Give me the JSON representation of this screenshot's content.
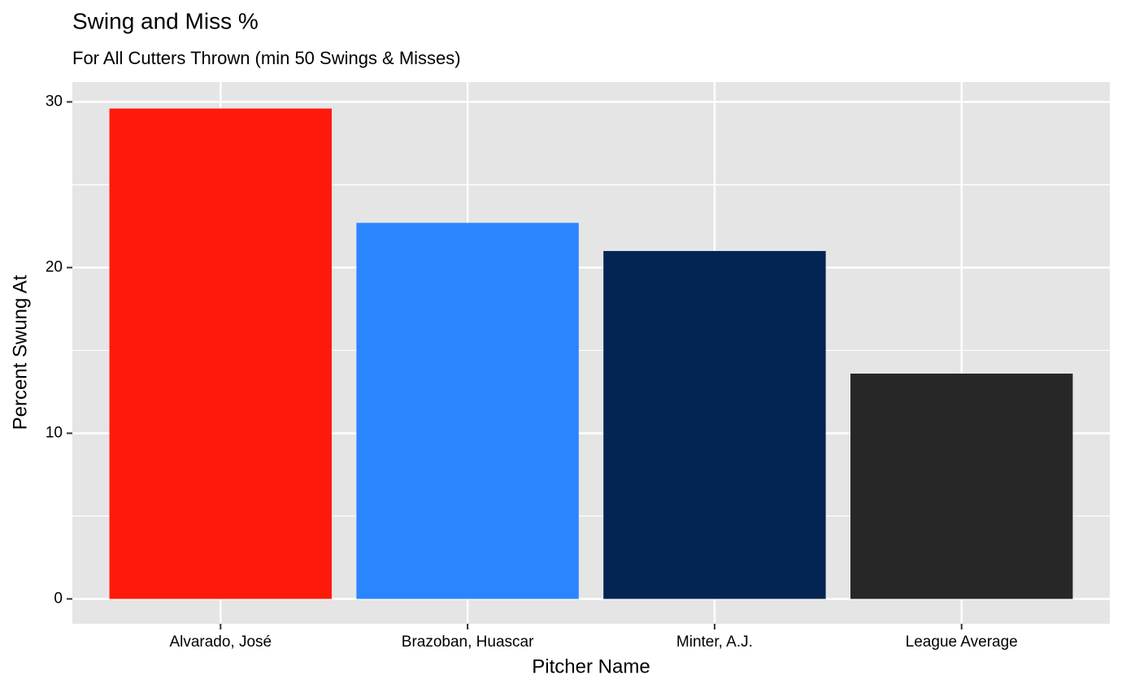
{
  "chart_data": {
    "type": "bar",
    "title": "Swing and Miss %",
    "subtitle": "For All Cutters Thrown (min 50 Swings & Misses)",
    "x_label": "Pitcher Name",
    "y_label": "Percent Swung At",
    "categories": [
      "Alvarado, José",
      "Brazoban, Huascar",
      "Minter, A.J.",
      "League Average"
    ],
    "values": [
      29.6,
      22.7,
      21.0,
      13.6
    ],
    "colors": [
      "#fe1a0a",
      "#2b85ff",
      "#042553",
      "#272727"
    ],
    "ylim": [
      -1.5,
      31.2
    ],
    "yticks": [
      0,
      10,
      20,
      30
    ],
    "minor_yticks": [
      5,
      15,
      25
    ],
    "grid": true
  }
}
